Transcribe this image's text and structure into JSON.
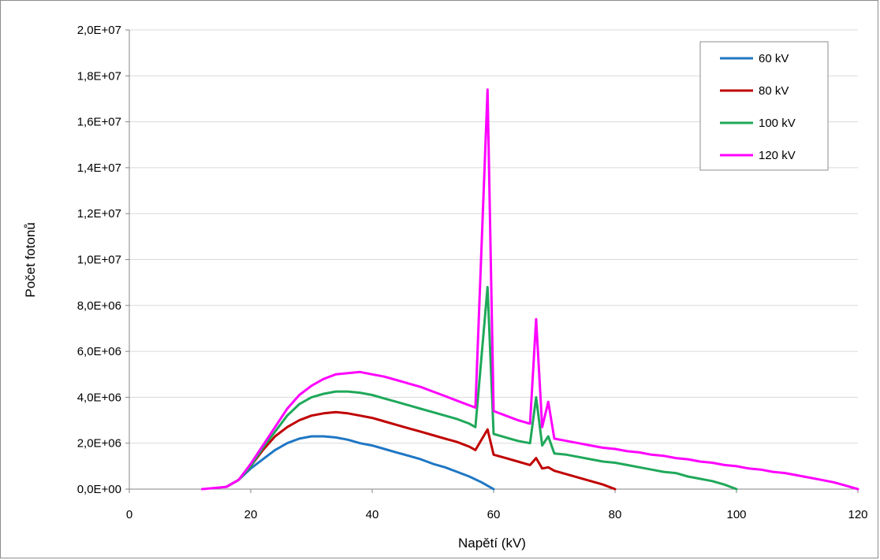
{
  "chart_data": {
    "type": "line",
    "title": "",
    "xlabel": "Napětí (kV)",
    "ylabel": "Počet fotonů",
    "xlim": [
      0,
      120
    ],
    "ylim": [
      0,
      20000000
    ],
    "x_ticks": [
      0,
      20,
      40,
      60,
      80,
      100,
      120
    ],
    "y_ticks": [
      0,
      2000000,
      4000000,
      6000000,
      8000000,
      10000000,
      12000000,
      14000000,
      16000000,
      18000000,
      20000000
    ],
    "x_tick_labels": [
      "0",
      "20",
      "40",
      "60",
      "80",
      "100",
      "120"
    ],
    "y_tick_labels": [
      "0,0E+00",
      "2,0E+06",
      "4,0E+06",
      "6,0E+06",
      "8,0E+06",
      "1,0E+07",
      "1,2E+07",
      "1,4E+07",
      "1,6E+07",
      "1,8E+07",
      "2,0E+07"
    ],
    "grid": "horizontal",
    "legend_position": "top-right",
    "series": [
      {
        "name": "60 kV",
        "color": "#1f77c4",
        "x": [
          16,
          18,
          20,
          22,
          24,
          26,
          28,
          30,
          32,
          34,
          36,
          38,
          40,
          42,
          44,
          46,
          48,
          50,
          52,
          54,
          56,
          58,
          60
        ],
        "y": [
          100000,
          400000,
          900000,
          1300000,
          1700000,
          2000000,
          2200000,
          2300000,
          2300000,
          2250000,
          2150000,
          2000000,
          1900000,
          1750000,
          1600000,
          1450000,
          1300000,
          1100000,
          950000,
          750000,
          550000,
          300000,
          0
        ]
      },
      {
        "name": "80 kV",
        "color": "#c00000",
        "x": [
          16,
          18,
          20,
          22,
          24,
          26,
          28,
          30,
          32,
          34,
          36,
          38,
          40,
          42,
          44,
          46,
          48,
          50,
          52,
          54,
          56,
          57,
          59,
          60,
          62,
          64,
          66,
          67,
          68,
          69,
          70,
          72,
          74,
          76,
          78,
          80
        ],
        "y": [
          100000,
          400000,
          1000000,
          1700000,
          2300000,
          2700000,
          3000000,
          3200000,
          3300000,
          3350000,
          3300000,
          3200000,
          3100000,
          2950000,
          2800000,
          2650000,
          2500000,
          2350000,
          2200000,
          2050000,
          1850000,
          1700000,
          2600000,
          1500000,
          1350000,
          1200000,
          1050000,
          1350000,
          900000,
          950000,
          800000,
          650000,
          500000,
          350000,
          200000,
          0
        ]
      },
      {
        "name": "100 kV",
        "color": "#1fa85a",
        "x": [
          16,
          18,
          20,
          22,
          24,
          26,
          28,
          30,
          32,
          34,
          36,
          38,
          40,
          42,
          44,
          46,
          48,
          50,
          52,
          54,
          56,
          57,
          59,
          60,
          62,
          64,
          66,
          67,
          68,
          69,
          70,
          72,
          74,
          76,
          78,
          80,
          82,
          84,
          86,
          88,
          90,
          92,
          94,
          96,
          98,
          100
        ],
        "y": [
          100000,
          400000,
          1000000,
          1800000,
          2500000,
          3200000,
          3700000,
          4000000,
          4150000,
          4250000,
          4250000,
          4200000,
          4100000,
          3950000,
          3800000,
          3650000,
          3500000,
          3350000,
          3200000,
          3050000,
          2850000,
          2700000,
          8800000,
          2400000,
          2250000,
          2100000,
          2000000,
          4000000,
          1900000,
          2300000,
          1550000,
          1500000,
          1400000,
          1300000,
          1200000,
          1150000,
          1050000,
          950000,
          850000,
          750000,
          700000,
          550000,
          450000,
          350000,
          200000,
          0
        ]
      },
      {
        "name": "120 kV",
        "color": "#ff00ff",
        "x": [
          12,
          16,
          18,
          20,
          22,
          24,
          26,
          28,
          30,
          32,
          34,
          36,
          38,
          40,
          42,
          44,
          46,
          48,
          50,
          52,
          54,
          56,
          57,
          59,
          60,
          62,
          64,
          66,
          67,
          68,
          69,
          70,
          72,
          74,
          76,
          78,
          80,
          82,
          84,
          86,
          88,
          90,
          92,
          94,
          96,
          98,
          100,
          102,
          104,
          106,
          108,
          110,
          112,
          114,
          116,
          118,
          120
        ],
        "y": [
          0,
          100000,
          400000,
          1100000,
          1900000,
          2700000,
          3500000,
          4100000,
          4500000,
          4800000,
          5000000,
          5050000,
          5100000,
          5000000,
          4900000,
          4750000,
          4600000,
          4450000,
          4250000,
          4050000,
          3850000,
          3650000,
          3550000,
          17400000,
          3400000,
          3200000,
          3000000,
          2850000,
          7400000,
          2700000,
          3800000,
          2200000,
          2100000,
          2000000,
          1900000,
          1800000,
          1750000,
          1650000,
          1600000,
          1500000,
          1450000,
          1350000,
          1300000,
          1200000,
          1150000,
          1050000,
          1000000,
          900000,
          850000,
          750000,
          700000,
          600000,
          500000,
          400000,
          300000,
          150000,
          0
        ]
      }
    ]
  }
}
